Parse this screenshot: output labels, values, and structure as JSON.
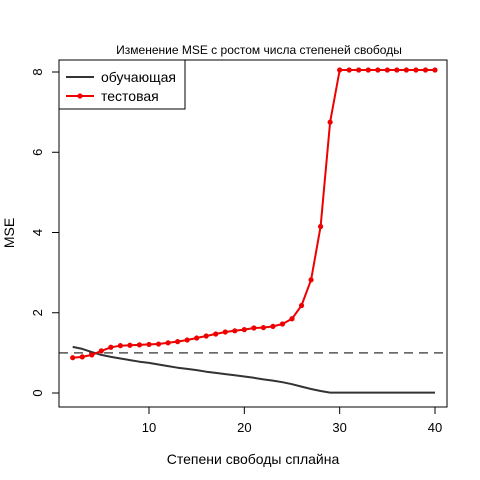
{
  "chart_data": {
    "type": "line",
    "title": "Изменение MSE с ростом числа степеней свободы",
    "xlabel": "Степени свободы сплайна",
    "ylabel": "MSE",
    "xlim": [
      2,
      40
    ],
    "ylim": [
      0,
      8
    ],
    "xticks": [
      10,
      20,
      30,
      40
    ],
    "yticks": [
      0,
      2,
      4,
      6,
      8
    ],
    "grid": false,
    "legend_position": "top-left",
    "reference_line": {
      "y": 1,
      "style": "dashed",
      "color": "#555555"
    },
    "series": [
      {
        "name": "обучающая",
        "color": "#333333",
        "markers": false,
        "x": [
          2,
          3,
          4,
          5,
          6,
          7,
          8,
          9,
          10,
          11,
          12,
          13,
          14,
          15,
          16,
          17,
          18,
          19,
          20,
          21,
          22,
          23,
          24,
          25,
          26,
          27,
          28,
          29,
          30,
          31,
          32,
          33,
          34,
          35,
          36,
          37,
          38,
          39,
          40
        ],
        "y": [
          1.15,
          1.1,
          1.02,
          0.95,
          0.9,
          0.86,
          0.82,
          0.78,
          0.75,
          0.71,
          0.67,
          0.63,
          0.6,
          0.57,
          0.53,
          0.5,
          0.47,
          0.44,
          0.41,
          0.38,
          0.34,
          0.31,
          0.27,
          0.22,
          0.16,
          0.1,
          0.05,
          0.01,
          0.01,
          0.01,
          0.01,
          0.01,
          0.01,
          0.01,
          0.01,
          0.01,
          0.01,
          0.01,
          0.01
        ]
      },
      {
        "name": "тестовая",
        "color": "#ee0000",
        "markers": true,
        "x": [
          2,
          3,
          4,
          5,
          6,
          7,
          8,
          9,
          10,
          11,
          12,
          13,
          14,
          15,
          16,
          17,
          18,
          19,
          20,
          21,
          22,
          23,
          24,
          25,
          26,
          27,
          28,
          29,
          30,
          31,
          32,
          33,
          34,
          35,
          36,
          37,
          38,
          39,
          40
        ],
        "y": [
          0.88,
          0.9,
          0.95,
          1.05,
          1.14,
          1.18,
          1.19,
          1.2,
          1.21,
          1.22,
          1.25,
          1.28,
          1.32,
          1.37,
          1.42,
          1.47,
          1.52,
          1.55,
          1.58,
          1.62,
          1.63,
          1.66,
          1.72,
          1.85,
          2.18,
          2.82,
          4.15,
          6.75,
          8.05,
          8.05,
          8.05,
          8.05,
          8.05,
          8.05,
          8.05,
          8.05,
          8.05,
          8.05,
          8.05
        ]
      }
    ]
  }
}
